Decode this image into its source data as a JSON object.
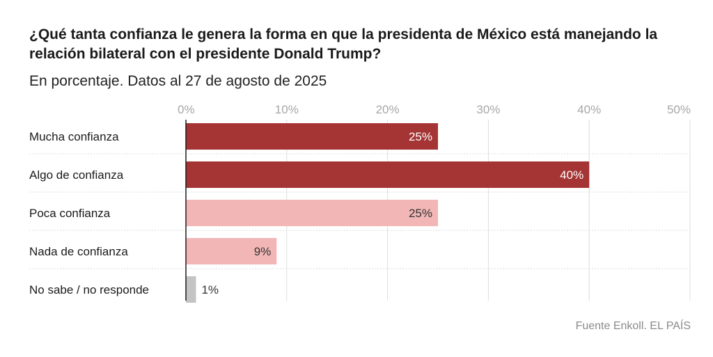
{
  "header": {
    "title": "¿Qué tanta confianza le genera la forma en que la presidenta de México está manejando la relación bilateral con el presidente Donald Trump?",
    "subtitle": "En porcentaje. Datos al 27 de agosto de 2025"
  },
  "footer": {
    "source": "Fuente Enkoll. EL PAÍS"
  },
  "chart_data": {
    "type": "bar",
    "orientation": "horizontal",
    "categories": [
      "Mucha confianza",
      "Algo de confianza",
      "Poca confianza",
      "Nada de confianza",
      "No sabe / no responde"
    ],
    "values": [
      25,
      40,
      25,
      9,
      1
    ],
    "value_labels": [
      "25%",
      "40%",
      "25%",
      "9%",
      "1%"
    ],
    "bar_colors": [
      "#a53434",
      "#a53434",
      "#f2b6b6",
      "#f2b6b6",
      "#c4c4c4"
    ],
    "label_colors": [
      "#ffffff",
      "#ffffff",
      "#333333",
      "#333333",
      "#333333"
    ],
    "xlim": [
      0,
      50
    ],
    "xticks": [
      0,
      10,
      20,
      30,
      40,
      50
    ],
    "xtick_labels": [
      "0%",
      "10%",
      "20%",
      "30%",
      "40%",
      "50%"
    ],
    "grid": true,
    "axis_position": "top"
  }
}
